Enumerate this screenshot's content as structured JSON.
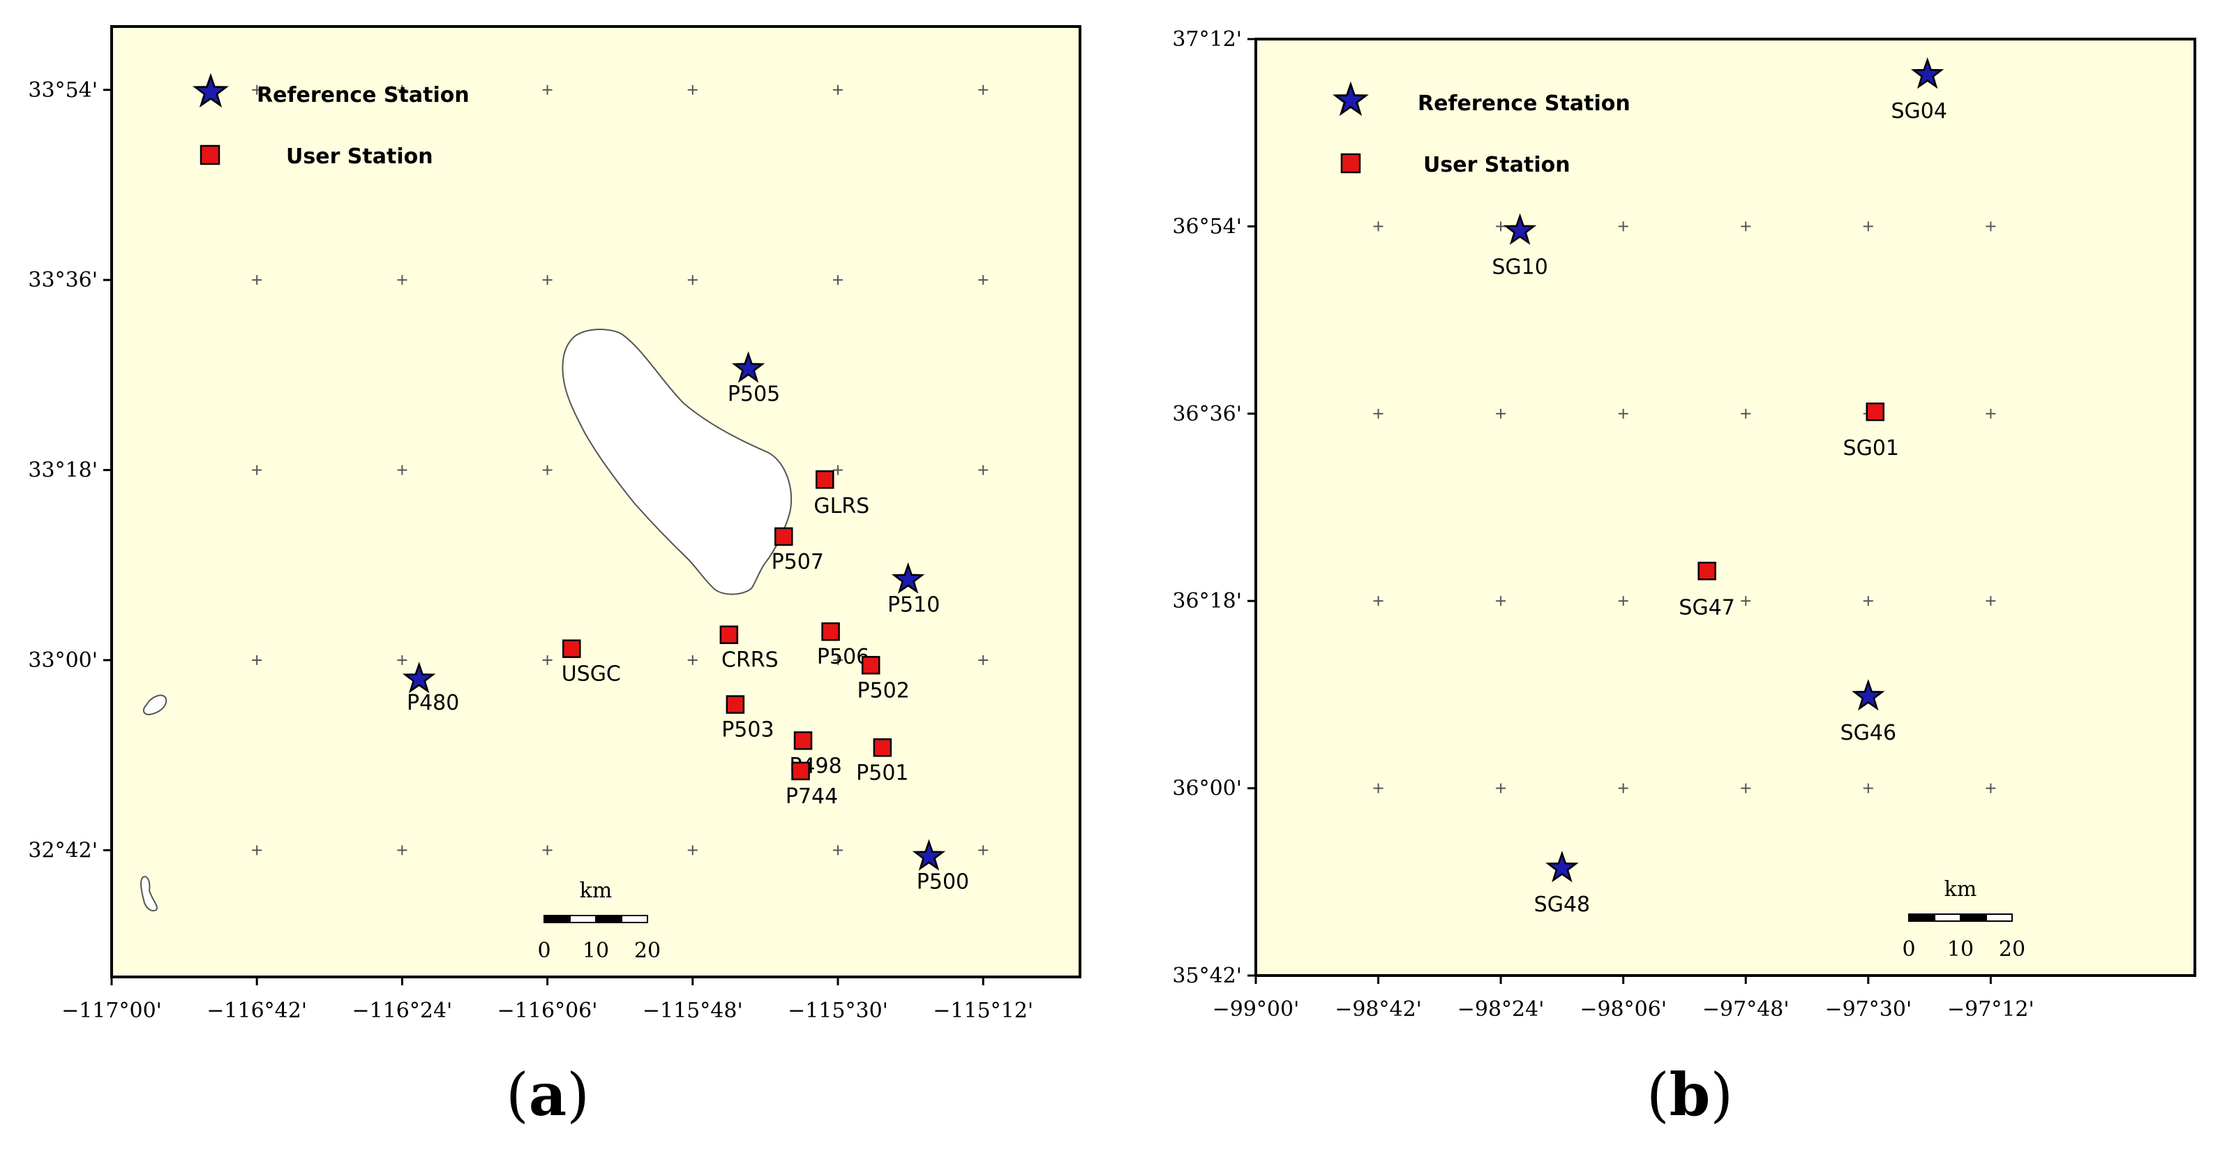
{
  "legend": {
    "reference_label": "Reference Station",
    "user_label": "User Station"
  },
  "colors": {
    "reference": "#1b1bb0",
    "user": "#e61414",
    "map_bg": "#ffffe0",
    "lake": "#ffffff"
  },
  "panels": [
    {
      "id": "a",
      "caption": "a",
      "lon_ticks": [
        "−117°00'",
        "−116°42'",
        "−116°24'",
        "−116°06'",
        "−115°48'",
        "−115°30'",
        "−115°12'"
      ],
      "lat_ticks": [
        "32°42'",
        "33°00'",
        "33°18'",
        "33°36'",
        "33°54'"
      ],
      "scale_bar": {
        "unit": "km",
        "labels": [
          "0",
          "10",
          "20"
        ]
      },
      "stations": [
        {
          "name": "P505",
          "type": "reference",
          "lon": -115.685,
          "lat": 33.46
        },
        {
          "name": "P510",
          "type": "reference",
          "lon": -115.355,
          "lat": 33.127
        },
        {
          "name": "P480",
          "type": "reference",
          "lon": -116.365,
          "lat": 32.97
        },
        {
          "name": "P500",
          "type": "reference",
          "lon": -115.312,
          "lat": 32.69
        },
        {
          "name": "GLRS",
          "type": "user",
          "lon": -115.527,
          "lat": 33.285
        },
        {
          "name": "P507",
          "type": "user",
          "lon": -115.612,
          "lat": 33.195
        },
        {
          "name": "P506",
          "type": "user",
          "lon": -115.515,
          "lat": 33.045
        },
        {
          "name": "CRRS",
          "type": "user",
          "lon": -115.725,
          "lat": 33.04
        },
        {
          "name": "USGC",
          "type": "user",
          "lon": -116.05,
          "lat": 33.018
        },
        {
          "name": "P502",
          "type": "user",
          "lon": -115.432,
          "lat": 32.992
        },
        {
          "name": "P503",
          "type": "user",
          "lon": -115.712,
          "lat": 32.93
        },
        {
          "name": "P498",
          "type": "user",
          "lon": -115.572,
          "lat": 32.873
        },
        {
          "name": "P501",
          "type": "user",
          "lon": -115.408,
          "lat": 32.862
        },
        {
          "name": "P744",
          "type": "user",
          "lon": -115.577,
          "lat": 32.825
        }
      ]
    },
    {
      "id": "b",
      "caption": "b",
      "lon_ticks": [
        "−99°00'",
        "−98°42'",
        "−98°24'",
        "−98°06'",
        "−97°48'",
        "−97°30'",
        "−97°12'"
      ],
      "lat_ticks": [
        "35°42'",
        "36°00'",
        "36°18'",
        "36°36'",
        "36°54'",
        "37°12'"
      ],
      "scale_bar": {
        "unit": "km",
        "labels": [
          "0",
          "10",
          "20"
        ]
      },
      "stations": [
        {
          "name": "SG04",
          "type": "reference",
          "lon": -97.355,
          "lat": 37.143
        },
        {
          "name": "SG10",
          "type": "reference",
          "lon": -98.353,
          "lat": 36.893
        },
        {
          "name": "SG46",
          "type": "reference",
          "lon": -97.5,
          "lat": 36.147
        },
        {
          "name": "SG48",
          "type": "reference",
          "lon": -98.25,
          "lat": 35.872
        },
        {
          "name": "SG01",
          "type": "user",
          "lon": -97.483,
          "lat": 36.603
        },
        {
          "name": "SG47",
          "type": "user",
          "lon": -97.895,
          "lat": 36.348
        }
      ]
    }
  ]
}
